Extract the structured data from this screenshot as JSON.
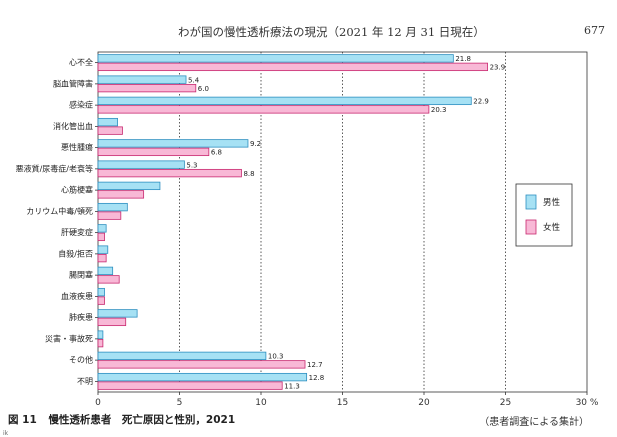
{
  "header": {
    "title": "わが国の慢性透析療法の現況（2021 年 12 月 31 日現在）",
    "page_number": "677"
  },
  "figure": {
    "number": "図 11",
    "title": "慢性透析患者　死亡原因と性別，2021",
    "source": "（患者調査による集計）",
    "stray_mark": "ik"
  },
  "colors": {
    "male_fill": "#a6e1f4",
    "male_stroke": "#2c8fc0",
    "female_fill": "#f8b8d6",
    "female_stroke": "#c8286f"
  },
  "chart_data": {
    "type": "bar",
    "orientation": "horizontal",
    "categories": [
      "心不全",
      "脳血管障害",
      "感染症",
      "消化管出血",
      "悪性腫瘍",
      "悪液質/尿毒症/老衰等",
      "心筋梗塞",
      "カリウム中毒/頓死",
      "肝硬変症",
      "自殺/拒否",
      "腸閉塞",
      "血液疾患",
      "肺疾患",
      "災害・事故死",
      "その他",
      "不明"
    ],
    "series": [
      {
        "name": "男性",
        "values": [
          21.8,
          5.4,
          22.9,
          1.2,
          9.2,
          5.3,
          3.8,
          1.8,
          0.5,
          0.6,
          0.9,
          0.4,
          2.4,
          0.3,
          10.3,
          12.8
        ],
        "labels": [
          "21.8",
          "5.4",
          "22.9",
          "",
          "9.2",
          "5.3",
          "",
          "",
          "",
          "",
          "",
          "",
          "",
          "",
          "10.3",
          "12.8"
        ]
      },
      {
        "name": "女性",
        "values": [
          23.9,
          6.0,
          20.3,
          1.5,
          6.8,
          8.8,
          2.8,
          1.4,
          0.4,
          0.5,
          1.3,
          0.4,
          1.7,
          0.3,
          12.7,
          11.3
        ],
        "labels": [
          "23.9",
          "6.0",
          "20.3",
          "",
          "6.8",
          "8.8",
          "",
          "",
          "",
          "",
          "",
          "",
          "",
          "",
          "12.7",
          "11.3"
        ]
      }
    ],
    "xlim": [
      0,
      30
    ],
    "xticks": [
      0,
      5,
      10,
      15,
      20,
      25,
      30
    ],
    "xtick_labels": [
      "0",
      "5",
      "10",
      "15",
      "20",
      "25",
      "30 %"
    ],
    "grid": "vertical-dotted",
    "legend_position": "right",
    "title": "",
    "xlabel": "",
    "ylabel": ""
  }
}
